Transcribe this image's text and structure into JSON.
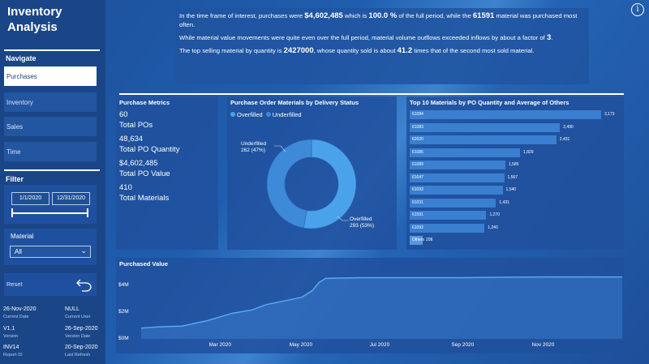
{
  "sidebar": {
    "app_title_line1": "Inventory",
    "app_title_line2": "Analysis",
    "navigate_label": "Navigate",
    "nav_items": [
      {
        "label": "Purchases",
        "active": true
      },
      {
        "label": "Inventory"
      },
      {
        "label": "Sales"
      },
      {
        "label": "Time"
      }
    ],
    "filter_label": "Filter",
    "date_start": "1/1/2020",
    "date_end": "12/31/2020",
    "material_label": "Material",
    "material_value": "All",
    "reset_label": "Reset",
    "meta": {
      "current_date_value": "26-Nov-2020",
      "current_date_label": "Current Date",
      "current_user_value": "NULL",
      "current_user_label": "Current User",
      "version_value": "V1.1",
      "version_label": "Version",
      "version_date_value": "26-Sep-2020",
      "version_date_label": "Version Date",
      "report_id_value": "INV14",
      "report_id_label": "Report ID",
      "last_refresh_value": "20-Sep-2020",
      "last_refresh_label": "Last Refresh"
    }
  },
  "info_icon": "info-icon",
  "narrative": {
    "p1_a": "In the time frame of interest, purchases were ",
    "p1_b": "$4,602,485",
    "p1_c": " which is ",
    "p1_d": "100.0 %",
    "p1_e": " of the full period, while the ",
    "p1_f": "61591",
    "p1_g": " material was purchased most often.",
    "p2_a": "While material value movements were quite even over the full period, material volume outflows exceeded inflows by about a factor of ",
    "p2_b": "3",
    "p2_c": ".",
    "p3_a": "The top selling material by quantity is ",
    "p3_b": "2427000",
    "p3_c": ", whose quantity sold is about ",
    "p3_d": "41.2",
    "p3_e": " times that of the second most sold material."
  },
  "purchase_metrics": {
    "title": "Purchase Metrics",
    "items": [
      {
        "value": "60",
        "label": "Total POs"
      },
      {
        "value": "48,634",
        "label": "Total PO Quantity"
      },
      {
        "value": "$4,602,485",
        "label": "Total PO Value"
      },
      {
        "value": "410",
        "label": "Total Materials"
      }
    ]
  },
  "delivery_status": {
    "title": "Purchase Order Materials by Delivery Status",
    "legend": [
      "Overfilled",
      "Underfilled"
    ],
    "colors": {
      "overfilled": "#4aa3ea",
      "underfilled": "#3f8ad8"
    },
    "underfilled_label": "Underfilled",
    "underfilled_detail": "262 (47%)",
    "overfilled_label": "Overfilled",
    "overfilled_detail": "293 (53%)",
    "chart_data": {
      "type": "pie",
      "categories": [
        "Overfilled",
        "Underfilled"
      ],
      "values": [
        293,
        262
      ],
      "percent": [
        53,
        47
      ]
    }
  },
  "top10": {
    "title": "Top 10 Materials by PO Quantity and Average of Others",
    "chart_data": {
      "type": "bar",
      "categories": [
        "61084",
        "61083",
        "62020",
        "61085",
        "61089",
        "61047",
        "61093",
        "61031",
        "61591",
        "61092",
        "Others"
      ],
      "values": [
        3173,
        2490,
        2431,
        1829,
        1585,
        1567,
        1540,
        1431,
        1270,
        1240,
        208
      ],
      "value_labels": [
        "3,173",
        "2,490",
        "2,431",
        "1,829",
        "1,585",
        "1,567",
        "1,540",
        "1,431",
        "1,270",
        "1,240",
        "208"
      ]
    }
  },
  "purchased_value": {
    "title": "Purchased Value",
    "chart_data": {
      "type": "line",
      "y_tick_labels": [
        "$4M",
        "$2M",
        "$0M"
      ],
      "y_ticks": [
        4,
        2,
        0
      ],
      "ylim": [
        0,
        4.7
      ],
      "x_tick_labels": [
        "Mar 2020",
        "May 2020",
        "Jul 2020",
        "Sep 2020",
        "Nov 2020"
      ],
      "series": [
        {
          "x": [
            "2020-01-01",
            "2020-01-15",
            "2020-02-01",
            "2020-02-20",
            "2020-03-10",
            "2020-03-25",
            "2020-04-05",
            "2020-04-20",
            "2020-05-02",
            "2020-05-10",
            "2020-05-15",
            "2020-05-20",
            "2020-06-15",
            "2020-07-01",
            "2020-08-01",
            "2020-09-01",
            "2020-10-01",
            "2020-11-01",
            "2020-12-01",
            "2020-12-31"
          ],
          "y": [
            0.8,
            0.9,
            0.95,
            1.35,
            1.9,
            2.15,
            2.55,
            2.85,
            3.1,
            3.6,
            4.2,
            4.5,
            4.55,
            4.55,
            4.55,
            4.55,
            4.58,
            4.6,
            4.6,
            4.6
          ],
          "unit": "$M"
        }
      ]
    }
  }
}
